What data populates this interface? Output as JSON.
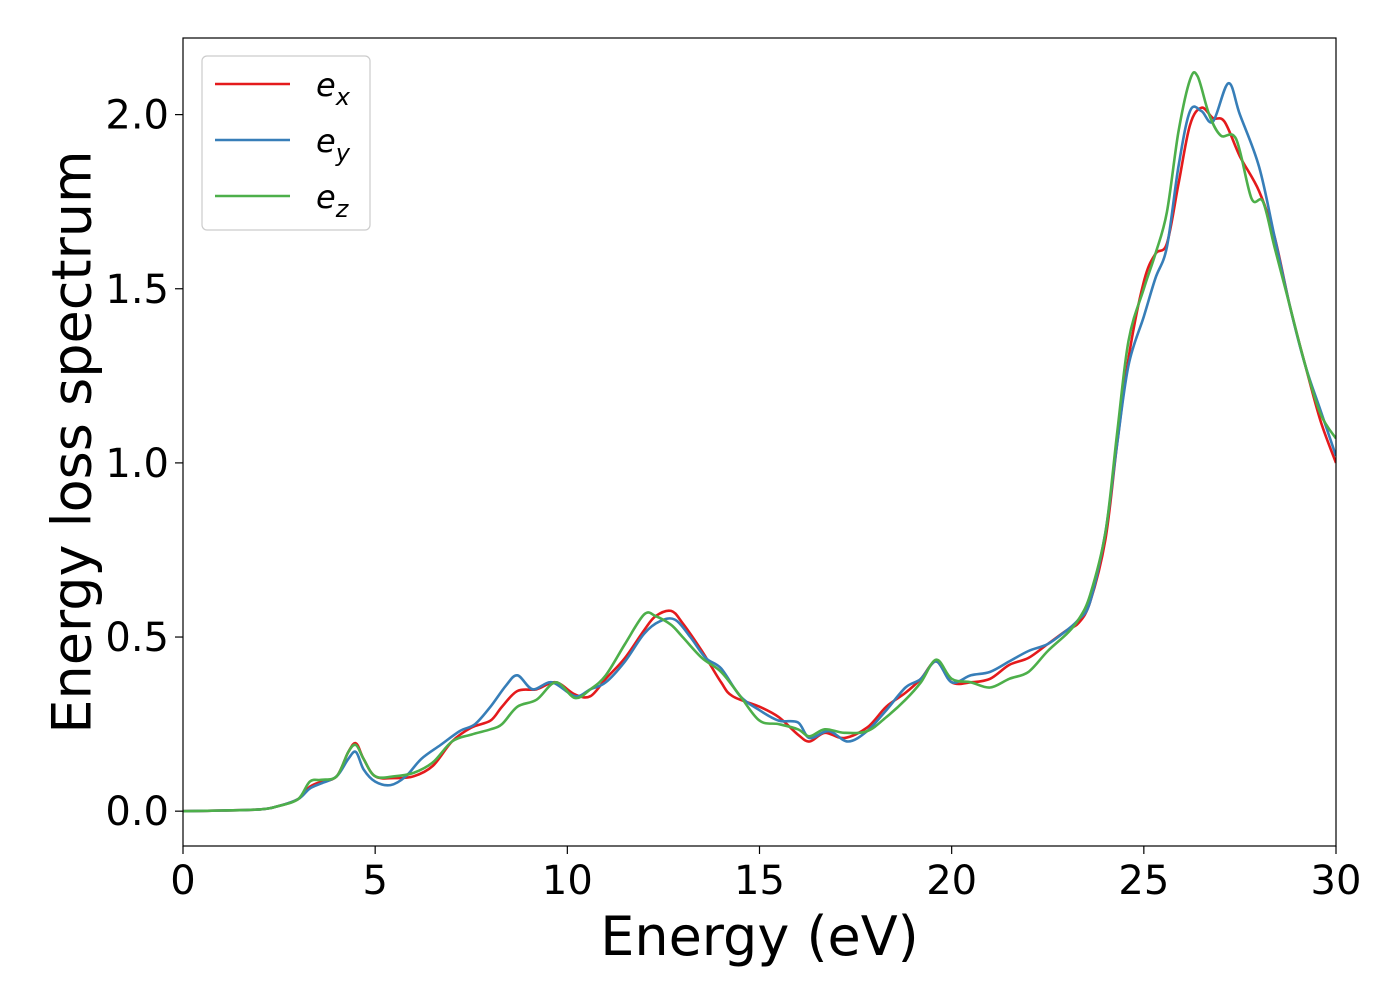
{
  "chart_data": {
    "type": "line",
    "xlabel": "Energy (eV)",
    "ylabel": "Energy loss spectrum",
    "xlim": [
      0,
      30
    ],
    "ylim": [
      -0.1,
      2.22
    ],
    "xticks": [
      0,
      5,
      10,
      15,
      20,
      25,
      30
    ],
    "xtick_labels": [
      "0",
      "5",
      "10",
      "15",
      "20",
      "25",
      "30"
    ],
    "yticks": [
      0.0,
      0.5,
      1.0,
      1.5,
      2.0
    ],
    "ytick_labels": [
      "0.0",
      "0.5",
      "1.0",
      "1.5",
      "2.0"
    ],
    "grid": false,
    "legend_position": "top-left",
    "series": [
      {
        "name": "e_x",
        "label_base": "e",
        "label_sub": "x",
        "color": "#e41a1c",
        "points": [
          [
            0,
            0
          ],
          [
            1,
            0.002
          ],
          [
            2,
            0.005
          ],
          [
            2.5,
            0.015
          ],
          [
            3,
            0.035
          ],
          [
            3.3,
            0.07
          ],
          [
            3.6,
            0.085
          ],
          [
            4,
            0.1
          ],
          [
            4.3,
            0.17
          ],
          [
            4.5,
            0.195
          ],
          [
            4.7,
            0.15
          ],
          [
            5,
            0.1
          ],
          [
            5.5,
            0.095
          ],
          [
            6,
            0.1
          ],
          [
            6.5,
            0.13
          ],
          [
            7,
            0.2
          ],
          [
            7.5,
            0.24
          ],
          [
            8,
            0.26
          ],
          [
            8.3,
            0.3
          ],
          [
            8.7,
            0.345
          ],
          [
            9.2,
            0.35
          ],
          [
            9.7,
            0.37
          ],
          [
            10.2,
            0.335
          ],
          [
            10.6,
            0.33
          ],
          [
            11,
            0.38
          ],
          [
            11.5,
            0.44
          ],
          [
            12,
            0.52
          ],
          [
            12.3,
            0.56
          ],
          [
            12.7,
            0.575
          ],
          [
            13,
            0.54
          ],
          [
            13.5,
            0.46
          ],
          [
            14,
            0.37
          ],
          [
            14.3,
            0.33
          ],
          [
            15,
            0.3
          ],
          [
            15.5,
            0.27
          ],
          [
            16,
            0.22
          ],
          [
            16.3,
            0.2
          ],
          [
            16.7,
            0.225
          ],
          [
            17.2,
            0.21
          ],
          [
            17.8,
            0.24
          ],
          [
            18.3,
            0.3
          ],
          [
            18.8,
            0.34
          ],
          [
            19.2,
            0.38
          ],
          [
            19.6,
            0.43
          ],
          [
            20,
            0.37
          ],
          [
            20.5,
            0.37
          ],
          [
            21,
            0.38
          ],
          [
            21.5,
            0.42
          ],
          [
            22,
            0.44
          ],
          [
            22.5,
            0.48
          ],
          [
            23,
            0.52
          ],
          [
            23.3,
            0.54
          ],
          [
            23.6,
            0.6
          ],
          [
            24,
            0.78
          ],
          [
            24.3,
            1.05
          ],
          [
            24.6,
            1.3
          ],
          [
            25,
            1.52
          ],
          [
            25.3,
            1.6
          ],
          [
            25.6,
            1.63
          ],
          [
            25.9,
            1.8
          ],
          [
            26.2,
            1.97
          ],
          [
            26.5,
            2.02
          ],
          [
            26.8,
            1.99
          ],
          [
            27.1,
            1.98
          ],
          [
            27.5,
            1.88
          ],
          [
            28,
            1.78
          ],
          [
            28.4,
            1.65
          ],
          [
            28.8,
            1.45
          ],
          [
            29.2,
            1.28
          ],
          [
            29.6,
            1.12
          ],
          [
            30,
            1.0
          ]
        ]
      },
      {
        "name": "e_y",
        "label_base": "e",
        "label_sub": "y",
        "color": "#377eb8",
        "points": [
          [
            0,
            0
          ],
          [
            1,
            0.002
          ],
          [
            2,
            0.005
          ],
          [
            2.5,
            0.015
          ],
          [
            3,
            0.035
          ],
          [
            3.3,
            0.065
          ],
          [
            3.6,
            0.08
          ],
          [
            4,
            0.1
          ],
          [
            4.3,
            0.15
          ],
          [
            4.5,
            0.17
          ],
          [
            4.7,
            0.12
          ],
          [
            5,
            0.085
          ],
          [
            5.4,
            0.075
          ],
          [
            5.8,
            0.1
          ],
          [
            6.2,
            0.15
          ],
          [
            6.7,
            0.19
          ],
          [
            7.2,
            0.23
          ],
          [
            7.6,
            0.25
          ],
          [
            8,
            0.3
          ],
          [
            8.4,
            0.36
          ],
          [
            8.7,
            0.39
          ],
          [
            9.1,
            0.35
          ],
          [
            9.6,
            0.37
          ],
          [
            10.2,
            0.33
          ],
          [
            10.6,
            0.35
          ],
          [
            11,
            0.37
          ],
          [
            11.5,
            0.43
          ],
          [
            12,
            0.51
          ],
          [
            12.4,
            0.545
          ],
          [
            12.8,
            0.55
          ],
          [
            13.2,
            0.5
          ],
          [
            13.6,
            0.44
          ],
          [
            14,
            0.41
          ],
          [
            14.5,
            0.33
          ],
          [
            15,
            0.29
          ],
          [
            15.5,
            0.26
          ],
          [
            16,
            0.255
          ],
          [
            16.3,
            0.21
          ],
          [
            16.8,
            0.23
          ],
          [
            17.3,
            0.2
          ],
          [
            17.8,
            0.23
          ],
          [
            18.3,
            0.29
          ],
          [
            18.8,
            0.355
          ],
          [
            19.2,
            0.38
          ],
          [
            19.6,
            0.43
          ],
          [
            20,
            0.37
          ],
          [
            20.5,
            0.39
          ],
          [
            21,
            0.4
          ],
          [
            21.5,
            0.43
          ],
          [
            22,
            0.46
          ],
          [
            22.5,
            0.48
          ],
          [
            23,
            0.52
          ],
          [
            23.3,
            0.55
          ],
          [
            23.6,
            0.6
          ],
          [
            24,
            0.8
          ],
          [
            24.3,
            1.05
          ],
          [
            24.6,
            1.28
          ],
          [
            25,
            1.42
          ],
          [
            25.3,
            1.53
          ],
          [
            25.6,
            1.62
          ],
          [
            25.9,
            1.85
          ],
          [
            26.2,
            2.01
          ],
          [
            26.5,
            2.01
          ],
          [
            26.8,
            1.98
          ],
          [
            27.2,
            2.09
          ],
          [
            27.5,
            2.0
          ],
          [
            28,
            1.85
          ],
          [
            28.4,
            1.65
          ],
          [
            28.8,
            1.45
          ],
          [
            29.2,
            1.28
          ],
          [
            29.6,
            1.15
          ],
          [
            30,
            1.02
          ]
        ]
      },
      {
        "name": "e_z",
        "label_base": "e",
        "label_sub": "z",
        "color": "#4daf4a",
        "points": [
          [
            0,
            0
          ],
          [
            1,
            0.002
          ],
          [
            2,
            0.005
          ],
          [
            2.5,
            0.015
          ],
          [
            3,
            0.035
          ],
          [
            3.3,
            0.085
          ],
          [
            3.6,
            0.09
          ],
          [
            4,
            0.1
          ],
          [
            4.3,
            0.17
          ],
          [
            4.5,
            0.19
          ],
          [
            4.7,
            0.15
          ],
          [
            5,
            0.1
          ],
          [
            5.5,
            0.1
          ],
          [
            6,
            0.11
          ],
          [
            6.5,
            0.14
          ],
          [
            7,
            0.2
          ],
          [
            7.5,
            0.22
          ],
          [
            8,
            0.235
          ],
          [
            8.3,
            0.25
          ],
          [
            8.7,
            0.3
          ],
          [
            9.2,
            0.32
          ],
          [
            9.7,
            0.37
          ],
          [
            10.2,
            0.325
          ],
          [
            10.6,
            0.35
          ],
          [
            11,
            0.39
          ],
          [
            11.5,
            0.48
          ],
          [
            12,
            0.565
          ],
          [
            12.3,
            0.56
          ],
          [
            12.7,
            0.535
          ],
          [
            13,
            0.5
          ],
          [
            13.5,
            0.44
          ],
          [
            14,
            0.4
          ],
          [
            14.5,
            0.33
          ],
          [
            15,
            0.26
          ],
          [
            15.5,
            0.25
          ],
          [
            16,
            0.235
          ],
          [
            16.3,
            0.215
          ],
          [
            16.7,
            0.235
          ],
          [
            17.2,
            0.225
          ],
          [
            17.8,
            0.23
          ],
          [
            18.3,
            0.27
          ],
          [
            18.8,
            0.32
          ],
          [
            19.2,
            0.37
          ],
          [
            19.6,
            0.435
          ],
          [
            20,
            0.38
          ],
          [
            20.5,
            0.37
          ],
          [
            21,
            0.355
          ],
          [
            21.5,
            0.38
          ],
          [
            22,
            0.4
          ],
          [
            22.5,
            0.46
          ],
          [
            23,
            0.51
          ],
          [
            23.3,
            0.55
          ],
          [
            23.6,
            0.62
          ],
          [
            24,
            0.8
          ],
          [
            24.3,
            1.08
          ],
          [
            24.6,
            1.35
          ],
          [
            25,
            1.5
          ],
          [
            25.3,
            1.6
          ],
          [
            25.6,
            1.72
          ],
          [
            25.9,
            1.95
          ],
          [
            26.2,
            2.1
          ],
          [
            26.4,
            2.11
          ],
          [
            26.7,
            2.0
          ],
          [
            27,
            1.94
          ],
          [
            27.4,
            1.93
          ],
          [
            27.8,
            1.76
          ],
          [
            28.1,
            1.75
          ],
          [
            28.4,
            1.62
          ],
          [
            28.8,
            1.45
          ],
          [
            29.2,
            1.28
          ],
          [
            29.6,
            1.14
          ],
          [
            30,
            1.07
          ]
        ]
      }
    ]
  }
}
